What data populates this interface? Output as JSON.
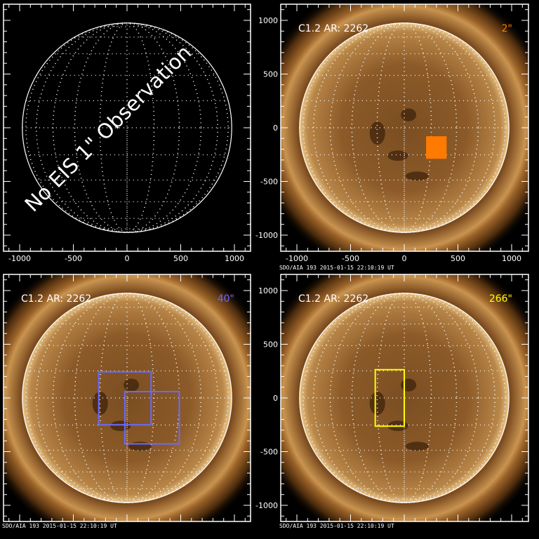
{
  "axis": {
    "x_ticks": [
      -1000,
      -500,
      0,
      500,
      1000
    ],
    "y_ticks": [
      1000,
      500,
      0,
      -500,
      -1000
    ]
  },
  "colors": {
    "disk_outline": "#ffffff",
    "fov_2": "#ff7a00",
    "fov_40": "#6a6aff",
    "fov_266": "#ffff00"
  },
  "panels": [
    {
      "id": "top-left",
      "empty_message": "No EIS 1\" Observation",
      "show_sun": false,
      "show_x_labels": true,
      "show_y_labels": false
    },
    {
      "id": "top-right",
      "flare_label": "C1.2 AR: 2262",
      "fov_label": "2\"",
      "fov_color": "#ff7a00",
      "footer": "SDO/AIA 193   2015-01-15 22:10:19 UT",
      "show_sun": true,
      "show_x_labels": true,
      "show_y_labels": true,
      "boxes": [
        {
          "x": [
            210,
            388
          ],
          "y": [
            -86,
            -283
          ],
          "filled": true
        }
      ]
    },
    {
      "id": "bottom-left",
      "flare_label": "C1.2 AR: 2262",
      "fov_label": "40\"",
      "fov_color": "#6a6aff",
      "footer": "SDO/AIA 193   2015-01-15 22:10:19 UT",
      "show_sun": true,
      "show_x_labels": false,
      "show_y_labels": false,
      "boxes": [
        {
          "x": [
            -263,
            224
          ],
          "y": [
            243,
            -250
          ],
          "filled": false
        },
        {
          "x": [
            -20,
            487
          ],
          "y": [
            59,
            -428
          ],
          "filled": false
        }
      ]
    },
    {
      "id": "bottom-right",
      "flare_label": "C1.2 AR: 2262",
      "fov_label": "266\"",
      "fov_color": "#ffff00",
      "footer": "SDO/AIA 193   2015-01-15 22:10:19 UT",
      "show_sun": true,
      "show_x_labels": false,
      "show_y_labels": true,
      "boxes": [
        {
          "x": [
            -270,
            0
          ],
          "y": [
            263,
            -263
          ],
          "filled": false
        }
      ]
    }
  ]
}
